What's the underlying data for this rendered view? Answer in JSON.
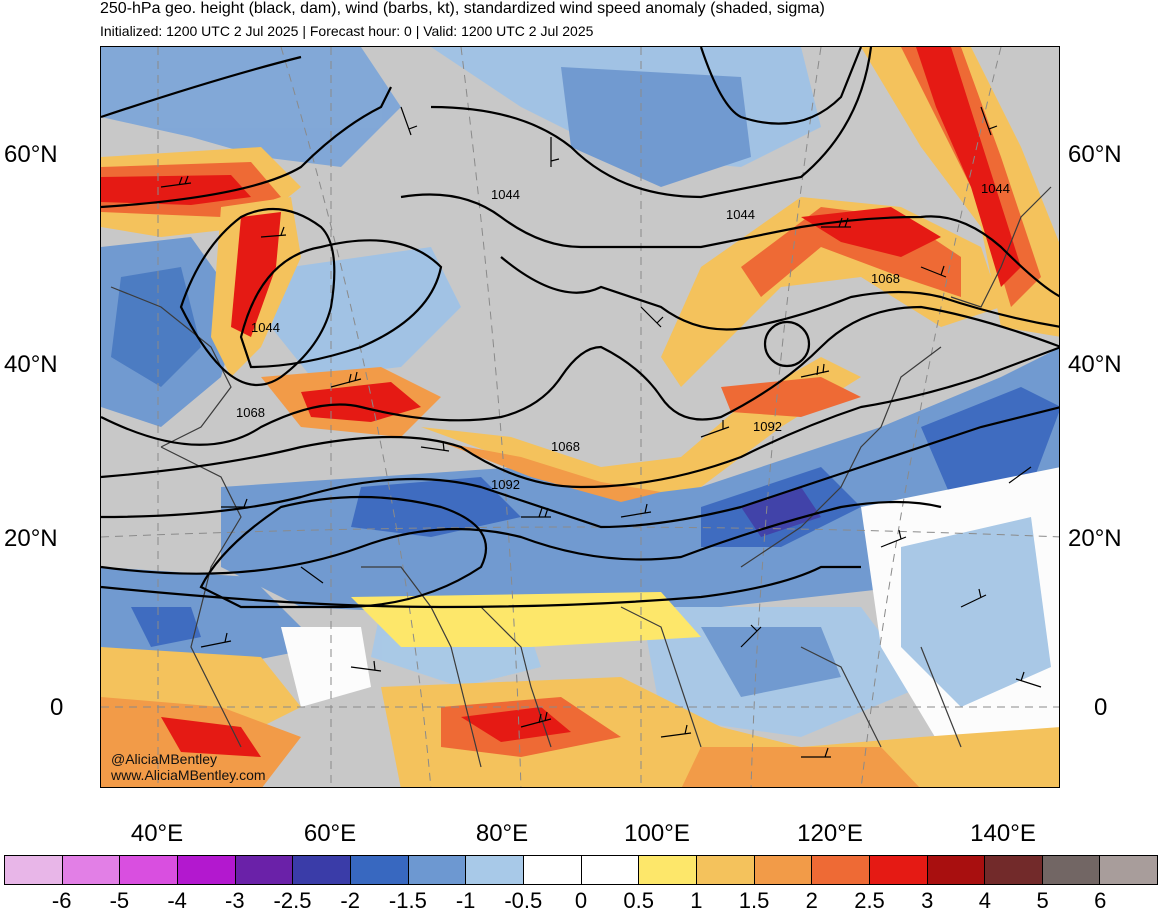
{
  "title": "250-hPa geo. height (black, dam), wind (barbs, kt), standardized wind speed anomaly (shaded, sigma)",
  "subtitle": "Initialized: 1200 UTC 2 Jul 2025 | Forecast hour: 0 | Valid: 1200 UTC 2 Jul 2025",
  "map": {
    "lat_labels": [
      "60°N",
      "40°N",
      "20°N",
      "0"
    ],
    "lon_labels": [
      "40°E",
      "60°E",
      "80°E",
      "100°E",
      "120°E",
      "140°E"
    ],
    "contour_labels": [
      "1044",
      "1044",
      "1044",
      "1044",
      "1068",
      "1068",
      "1068",
      "1092",
      "1092"
    ],
    "credit_handle": "@AliciaMBentley",
    "credit_site": "www.AliciaMBentley.com"
  },
  "colorbar": {
    "labels": [
      "-6",
      "-5",
      "-4",
      "-3",
      "-2.5",
      "-2",
      "-1.5",
      "-1",
      "-0.5",
      "0",
      "0.5",
      "1",
      "1.5",
      "2",
      "2.5",
      "3",
      "4",
      "5",
      "6"
    ],
    "colors": [
      "#e8b6e8",
      "#e27fe6",
      "#d94fe0",
      "#b318cf",
      "#6a21a8",
      "#3a3ca8",
      "#3868c0",
      "#6d98d1",
      "#a8c9e8",
      "#ffffff",
      "#ffffff",
      "#fde76a",
      "#f4c25c",
      "#f29b48",
      "#ee6a35",
      "#e51a14",
      "#a80f0f",
      "#722a2a",
      "#726664",
      "#a89d9b"
    ]
  }
}
